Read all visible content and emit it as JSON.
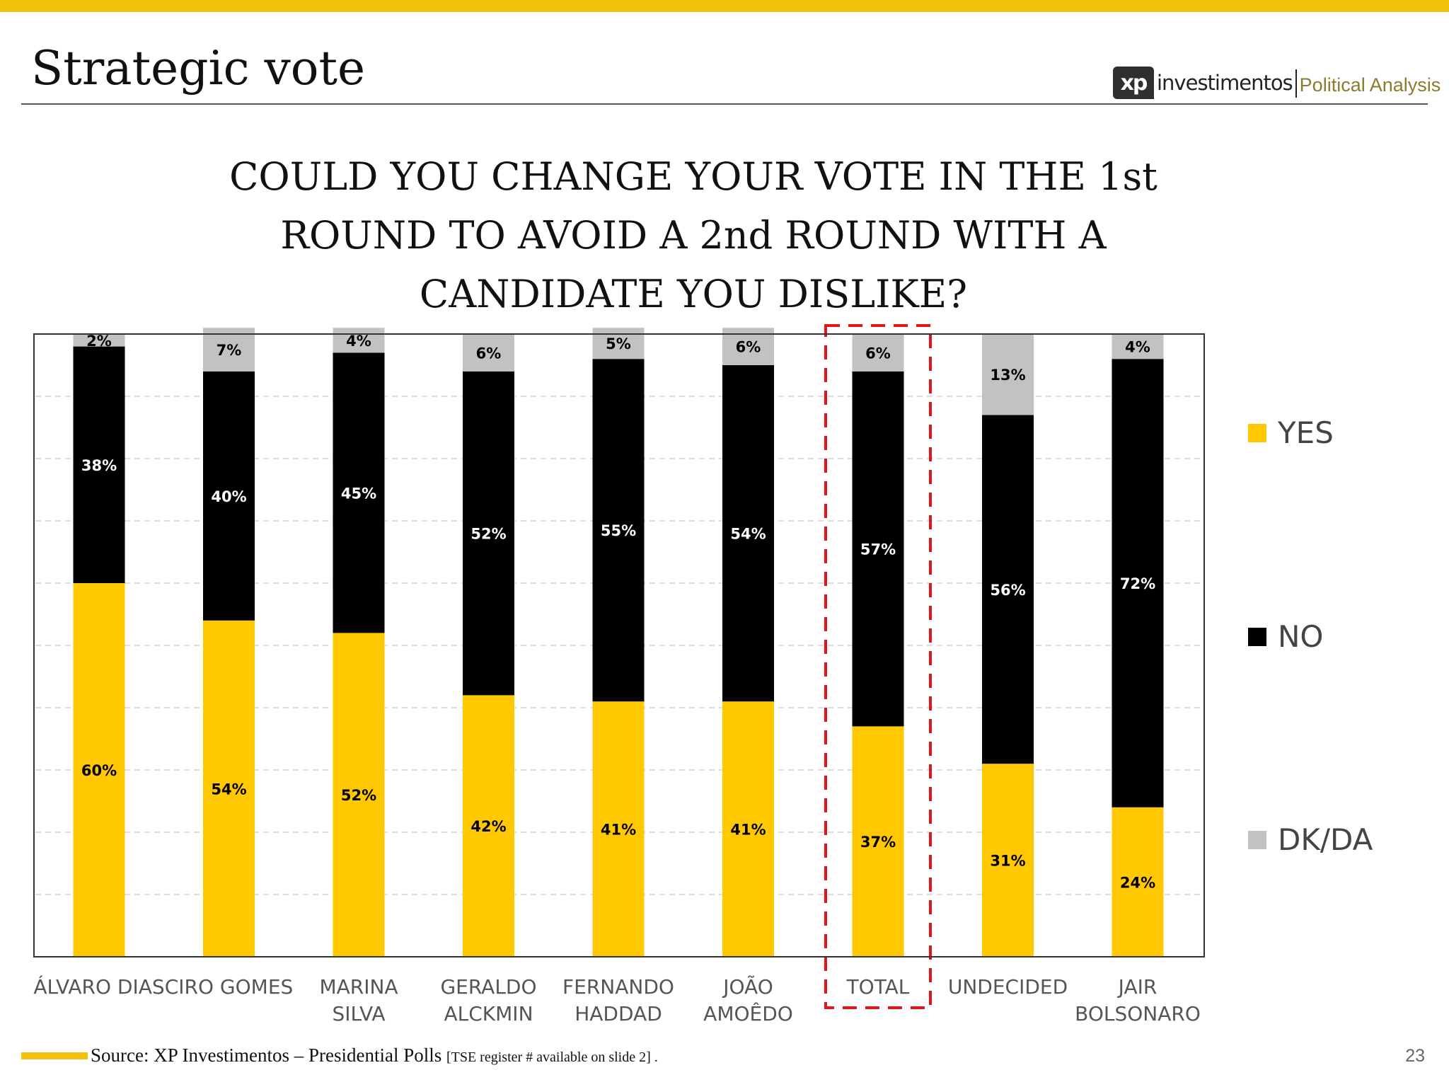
{
  "slide": {
    "title": "Strategic vote",
    "page_number": "23",
    "brand": {
      "logo_text": "xp",
      "name": "investimentos",
      "subtitle": "Political Analysis"
    }
  },
  "question": {
    "lines": [
      "COULD YOU CHANGE YOUR VOTE IN THE 1st",
      "ROUND TO AVOID A 2nd ROUND WITH A",
      "CANDIDATE YOU DISLIKE?"
    ]
  },
  "source": {
    "text": "Source: XP Investimentos – Presidential Polls",
    "note": "[TSE register # available on slide 2] ."
  },
  "colors": {
    "accent": "#f4c20d",
    "yes": "#ffc800",
    "no": "#000000",
    "dkda": "#c2c2c2",
    "highlight_box": "#e3141a"
  },
  "chart_data": {
    "type": "bar",
    "stacked": true,
    "title": "COULD YOU CHANGE YOUR VOTE IN THE 1st ROUND TO AVOID A 2nd ROUND WITH A CANDIDATE YOU DISLIKE?",
    "categories": [
      [
        "ÁLVARO DIAS"
      ],
      [
        "CIRO GOMES"
      ],
      [
        "MARINA",
        "SILVA"
      ],
      [
        "GERALDO",
        "ALCKMIN"
      ],
      [
        "FERNANDO",
        "HADDAD"
      ],
      [
        "JOÃO",
        "AMOÊDO"
      ],
      [
        "TOTAL"
      ],
      [
        "UNDECIDED"
      ],
      [
        "JAIR",
        "BOLSONARO"
      ]
    ],
    "series": [
      {
        "name": "YES",
        "color": "#ffc800",
        "label_color": "#000000",
        "values": [
          60,
          54,
          52,
          42,
          41,
          41,
          37,
          31,
          24
        ]
      },
      {
        "name": "NO",
        "color": "#000000",
        "label_color": "#ffffff",
        "values": [
          38,
          40,
          45,
          52,
          55,
          54,
          57,
          56,
          72
        ]
      },
      {
        "name": "DK/DA",
        "color": "#c2c2c2",
        "label_color": "#000000",
        "values": [
          2,
          7,
          4,
          6,
          5,
          6,
          6,
          13,
          4
        ]
      }
    ],
    "value_suffix": "%",
    "ylim": [
      0,
      100
    ],
    "xlabel": "",
    "ylabel": "",
    "grid": true,
    "legend_position": "right",
    "highlighted_category": "TOTAL"
  }
}
